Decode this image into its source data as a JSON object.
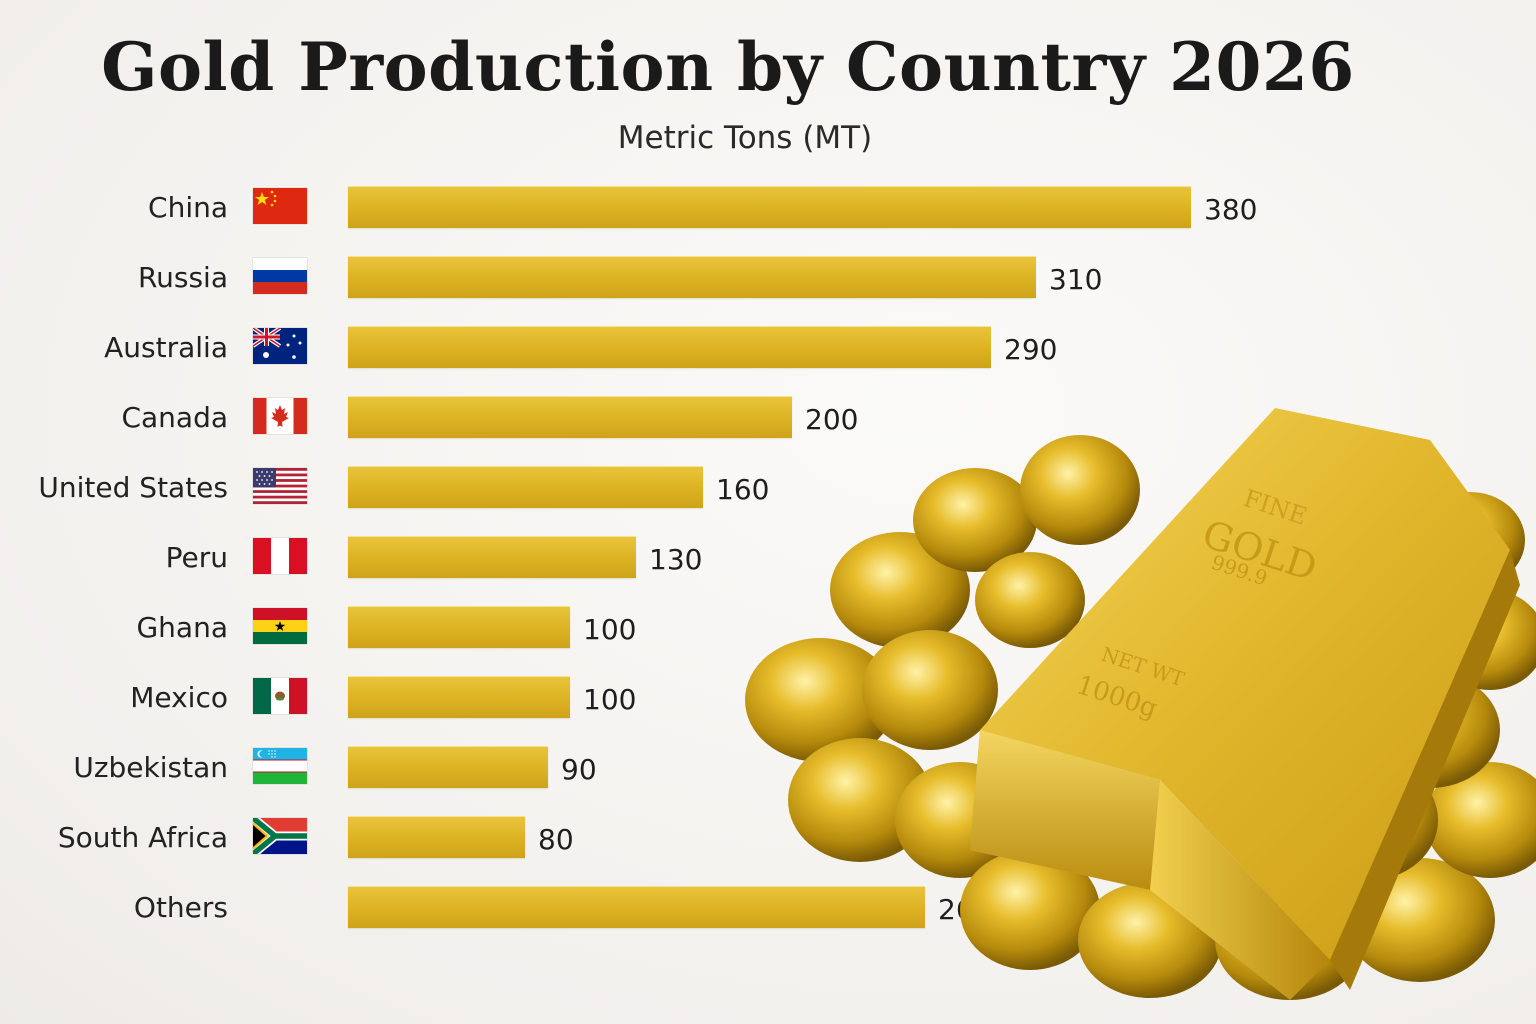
{
  "title": "Gold Production by Country 2026",
  "subtitle": "Metric Tons (MT)",
  "chart_data": {
    "type": "bar",
    "orientation": "horizontal",
    "title": "Gold Production by Country 2026",
    "subtitle": "Metric Tons (MT)",
    "categories": [
      "China",
      "Russia",
      "Australia",
      "Canada",
      "United States",
      "Peru",
      "Ghana",
      "Mexico",
      "Uzbekistan",
      "South Africa",
      "Others"
    ],
    "values": [
      380,
      310,
      290,
      200,
      160,
      130,
      100,
      100,
      90,
      80,
      260
    ],
    "data_labels": [
      "380",
      "310",
      "290",
      "200",
      "160",
      "130",
      "100",
      "100",
      "90",
      "80",
      "260"
    ],
    "flags": [
      "china-flag",
      "russia-flag",
      "australia-flag",
      "canada-flag",
      "united-states-flag",
      "peru-flag",
      "ghana-flag",
      "mexico-flag",
      "uzbekistan-flag",
      "south-africa-flag",
      ""
    ],
    "xlim": [
      0,
      380
    ],
    "grid": false,
    "legend": "none",
    "bar_color": "#dcb222"
  },
  "image": {
    "description_icon": "gold-bar-and-nuggets",
    "bar_text": [
      "FINE",
      "GOLD",
      "999.9",
      "NET WT",
      "1000g"
    ]
  }
}
